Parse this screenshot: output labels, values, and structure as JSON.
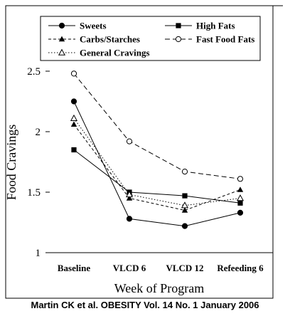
{
  "chart_data": {
    "type": "line",
    "categories": [
      "Baseline",
      "VLCD 6",
      "VLCD 12",
      "Refeeding 6"
    ],
    "xlabel": "Week of Program",
    "ylabel": "Food Cravings",
    "ylim": [
      1,
      2.5
    ],
    "yticks": [
      "1",
      "1.5",
      "2",
      "2.5"
    ],
    "grid": false,
    "legend_position": "top",
    "series": [
      {
        "name": "Sweets",
        "values": [
          2.25,
          1.28,
          1.22,
          1.33
        ],
        "marker": "filled-circle",
        "line": "solid"
      },
      {
        "name": "High Fats",
        "values": [
          1.85,
          1.5,
          1.47,
          1.41
        ],
        "marker": "filled-square",
        "line": "solid"
      },
      {
        "name": "Carbs/Starches",
        "values": [
          2.06,
          1.45,
          1.35,
          1.52
        ],
        "marker": "filled-triangle",
        "line": "dashed"
      },
      {
        "name": "Fast Food Fats",
        "values": [
          2.48,
          1.92,
          1.67,
          1.61
        ],
        "marker": "open-circle",
        "line": "long-dashed"
      },
      {
        "name": "General Cravings",
        "values": [
          2.11,
          1.48,
          1.39,
          1.45
        ],
        "marker": "open-triangle",
        "line": "dotted"
      }
    ]
  },
  "caption": "Martin CK et al. OBESITY Vol. 14 No. 1 January 2006"
}
